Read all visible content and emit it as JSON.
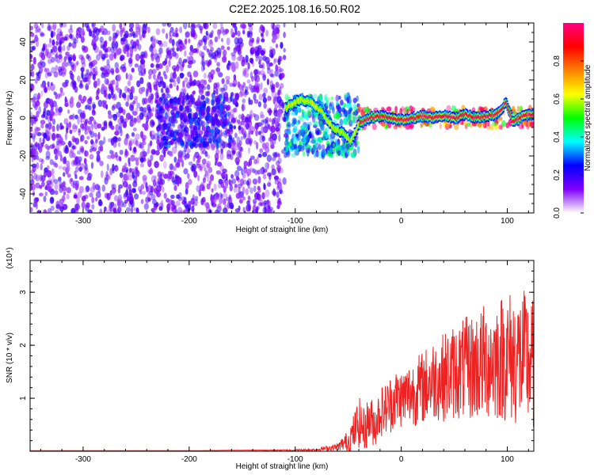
{
  "title": "C2E2.2025.108.16.50.R02",
  "chart_data": [
    {
      "type": "heatmap",
      "xlabel": "Height of straight line (km)",
      "ylabel": "Frequency (Hz)",
      "xlim": [
        -350,
        125
      ],
      "ylim": [
        -50,
        50
      ],
      "xticks": [
        -300,
        -200,
        -100,
        0,
        100
      ],
      "yticks": [
        -40,
        -20,
        0,
        20,
        40
      ],
      "colorbar": {
        "label": "Normalized spectral amplitude",
        "range": [
          0,
          1
        ],
        "ticks": [
          "0.0",
          "0.2",
          "0.4",
          "0.6",
          "0.8"
        ],
        "colormap": [
          "#ffffff",
          "#8000ff",
          "#0000ff",
          "#00ffff",
          "#00ff00",
          "#ffff00",
          "#ff8000",
          "#ff0000",
          "#ff0080"
        ]
      },
      "features": [
        {
          "x_range": [
            -350,
            -110
          ],
          "freq_range": [
            -50,
            50
          ],
          "amplitude": 0.15,
          "description": "diffuse low-amplitude noise"
        },
        {
          "x_range": [
            -230,
            -160
          ],
          "freq_range": [
            -15,
            12
          ],
          "amplitude": 0.22
        },
        {
          "x_range": [
            -110,
            -40
          ],
          "freq_range": [
            -20,
            12
          ],
          "amplitude": 0.35
        },
        {
          "x_range": [
            -40,
            125
          ],
          "freq_range": [
            -5,
            5
          ],
          "amplitude": 0.9
        }
      ],
      "ridge": {
        "x": [
          -110,
          -95,
          -85,
          -75,
          -65,
          -55,
          -48,
          -40,
          -30,
          -20,
          -10,
          0,
          10,
          20,
          30,
          40,
          50,
          60,
          70,
          80,
          90,
          98,
          105,
          115,
          125
        ],
        "y": [
          5,
          10,
          8,
          3,
          -5,
          -8,
          -12,
          -3,
          0,
          1,
          0,
          -1,
          0,
          1,
          0,
          1,
          0,
          2,
          0,
          1,
          2,
          8,
          -2,
          1,
          2
        ]
      }
    },
    {
      "type": "line",
      "xlabel": "Height of straight line (km)",
      "ylabel": "SNR (10 * v/v)",
      "multiplier": "(x10⁴)",
      "xlim": [
        -350,
        125
      ],
      "ylim": [
        0,
        3.6
      ],
      "xticks": [
        -300,
        -200,
        -100,
        0,
        100
      ],
      "yticks": [
        1,
        2,
        3
      ],
      "series": [
        {
          "color": "#ee2222",
          "x": [
            -350,
            -300,
            -250,
            -200,
            -150,
            -100,
            -80,
            -60,
            -50,
            -45,
            -40,
            -35,
            -30,
            -25,
            -20,
            -15,
            -10,
            -5,
            0,
            10,
            20,
            30,
            40,
            50,
            60,
            70,
            80,
            90,
            100,
            110,
            120,
            125
          ],
          "y": [
            0.01,
            0.01,
            0.01,
            0.01,
            0.02,
            0.02,
            0.03,
            0.08,
            0.2,
            0.35,
            0.55,
            0.4,
            0.6,
            0.5,
            0.75,
            0.8,
            0.9,
            1.0,
            1.0,
            1.1,
            1.2,
            1.35,
            1.4,
            1.5,
            1.55,
            1.6,
            1.7,
            1.75,
            1.8,
            1.75,
            1.7,
            1.6
          ],
          "variability": [
            0,
            0,
            0,
            0,
            0,
            0.01,
            0.02,
            0.05,
            0.15,
            0.25,
            0.35,
            0.3,
            0.35,
            0.3,
            0.35,
            0.35,
            0.4,
            0.4,
            0.4,
            0.45,
            0.5,
            0.55,
            0.6,
            0.65,
            0.7,
            0.75,
            0.8,
            0.85,
            0.9,
            0.95,
            0.95,
            0.9
          ]
        }
      ]
    }
  ]
}
